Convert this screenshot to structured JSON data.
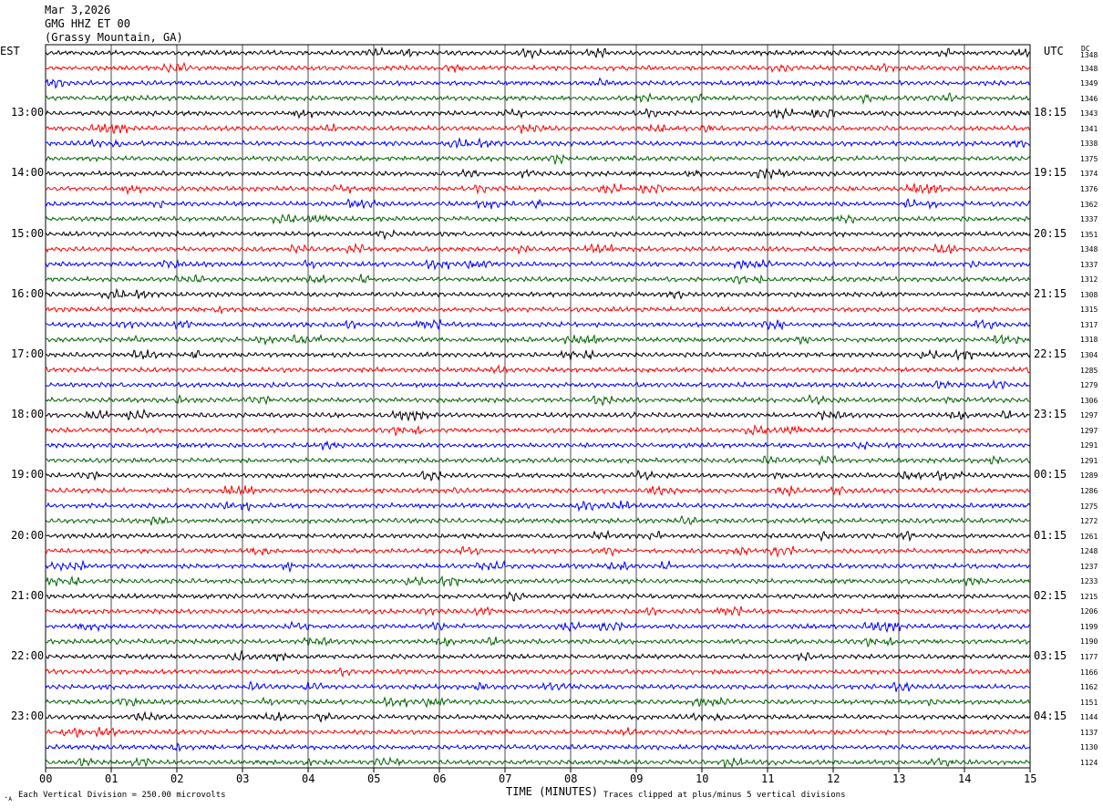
{
  "header": {
    "date": "Mar 3,2026",
    "station": "GMG HHZ ET 00",
    "location": "(Grassy Mountain, GA)"
  },
  "left_tz": "EST",
  "right_tz": "UTC",
  "dc_title": "DC",
  "chart_data": {
    "type": "line",
    "title": "",
    "xlabel": "TIME (MINUTES)",
    "ylabel": "",
    "xlim": [
      0,
      15
    ],
    "x_ticks": [
      "00",
      "01",
      "02",
      "03",
      "04",
      "05",
      "06",
      "07",
      "08",
      "09",
      "10",
      "11",
      "12",
      "13",
      "14",
      "15"
    ],
    "trace_minutes": 15,
    "trace_colors": [
      "#000000",
      "#ff0000",
      "#0000ff",
      "#006400"
    ],
    "grid": true,
    "left_hour_labels": [
      "13:00",
      "14:00",
      "15:00",
      "16:00",
      "17:00",
      "18:00",
      "19:00",
      "20:00",
      "21:00",
      "22:00",
      "23:00"
    ],
    "right_hour_labels": [
      "18:15",
      "19:15",
      "20:15",
      "21:15",
      "22:15",
      "23:15",
      "00:15",
      "01:15",
      "02:15",
      "03:15",
      "04:15"
    ],
    "dc_offsets": [
      1348,
      1348,
      1349,
      1346,
      1343,
      1341,
      1338,
      1375,
      1374,
      1376,
      1362,
      1337,
      1351,
      1348,
      1337,
      1312,
      1308,
      1315,
      1317,
      1318,
      1304,
      1285,
      1279,
      1306,
      1297,
      1297,
      1291,
      1291,
      1289,
      1286,
      1275,
      1272,
      1261,
      1248,
      1237,
      1233,
      1215,
      1206,
      1199,
      1190,
      1177,
      1166,
      1162,
      1151,
      1144,
      1137,
      1130,
      1124
    ]
  },
  "footer": {
    "vertical_division": "Each Vertical Division =  250.00 microvolts",
    "clip_note": "Traces clipped at plus/minus 5 vertical divisions"
  }
}
